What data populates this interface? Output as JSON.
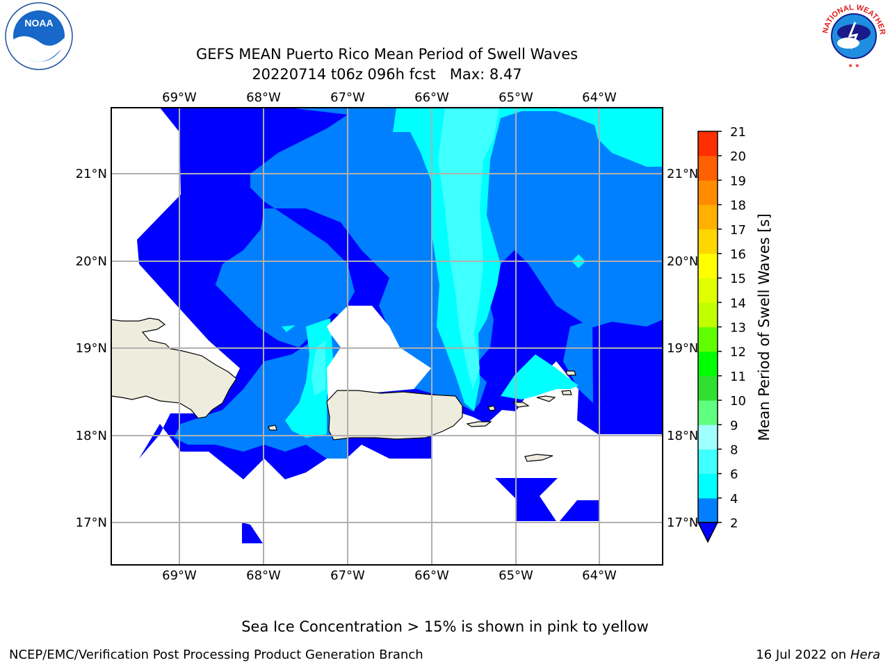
{
  "title": {
    "line1": "GEFS MEAN Puerto Rico Mean Period of Swell Waves",
    "line2": "20220714 t06z 096h fcst   Max: 8.47"
  },
  "map": {
    "lon_labels": [
      "69°W",
      "68°W",
      "67°W",
      "66°W",
      "65°W",
      "64°W"
    ],
    "lat_labels": [
      "21°N",
      "20°N",
      "19°N",
      "18°N",
      "17°N"
    ],
    "extent": {
      "lon_min": -69.8,
      "lon_max": -63.25,
      "lat_min": 16.5,
      "lat_max": 21.75
    }
  },
  "colorbar": {
    "label": "Mean Period of Swell Waves [s]",
    "ticks": [
      "2",
      "4",
      "6",
      "8",
      "9",
      "10",
      "11",
      "12",
      "13",
      "14",
      "15",
      "16",
      "17",
      "18",
      "19",
      "20",
      "21"
    ],
    "colors": [
      "#0000ff",
      "#0080ff",
      "#00ffff",
      "#40ffff",
      "#a0ffff",
      "#60ff80",
      "#30e030",
      "#00ff00",
      "#60ff00",
      "#c0ff00",
      "#e0ff00",
      "#ffff00",
      "#ffd700",
      "#ffb000",
      "#ff8c00",
      "#ff6000",
      "#ff3000",
      "#ff0000"
    ]
  },
  "colors": {
    "land": "#eeecdd",
    "grid": "#b0b0b0",
    "level_2_4": "#0000ff",
    "level_4_6": "#0080ff",
    "level_6_8": "#00ffff",
    "level_8_9": "#40ffff"
  },
  "logos": {
    "noaa_text": "NOAA",
    "nws_text": "NATIONAL WEATHER SERVICE"
  },
  "caption": "Sea Ice Concentration > 15% is shown in pink to yellow",
  "footer": {
    "left": "NCEP/EMC/Verification Post Processing Product Generation Branch",
    "right_prefix": "16 Jul 2022 on ",
    "right_host": "Hera"
  }
}
